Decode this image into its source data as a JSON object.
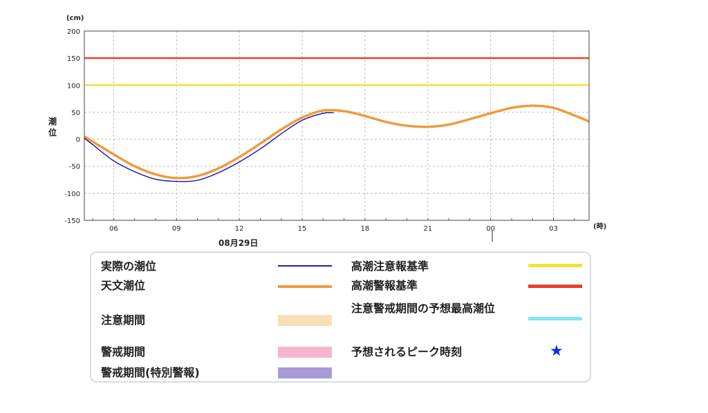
{
  "chart_data": {
    "type": "line",
    "y_unit": "(cm)",
    "x_unit": "(時)",
    "ylabel": "潮位",
    "date_label": "08月29日",
    "ylim": [
      -150,
      200
    ],
    "y_ticks": [
      200,
      150,
      100,
      50,
      0,
      -50,
      -100,
      -150
    ],
    "x_range_hours": [
      4.6,
      28.7
    ],
    "x_ticks": [
      {
        "hour": 6,
        "label": "06"
      },
      {
        "hour": 9,
        "label": "09"
      },
      {
        "hour": 12,
        "label": "12"
      },
      {
        "hour": 15,
        "label": "15"
      },
      {
        "hour": 18,
        "label": "18"
      },
      {
        "hour": 21,
        "label": "21"
      },
      {
        "hour": 24,
        "label": "00"
      },
      {
        "hour": 27,
        "label": "03"
      }
    ],
    "grid": true,
    "thresholds": [
      {
        "name": "高潮警報基準",
        "value": 150,
        "color": "#e8412a"
      },
      {
        "name": "高潮注意報基準",
        "value": 100,
        "color": "#f0e43a"
      }
    ],
    "series": [
      {
        "name": "天文潮位",
        "color": "#ee9b3a",
        "x": [
          4.6,
          6,
          7,
          8,
          9,
          10,
          11,
          12,
          13,
          14,
          15,
          16,
          17,
          18,
          19,
          20,
          21,
          22,
          23,
          24,
          25,
          26,
          27,
          28,
          28.7
        ],
        "y": [
          5,
          -28,
          -50,
          -65,
          -72,
          -68,
          -54,
          -33,
          -8,
          18,
          40,
          53,
          52,
          43,
          32,
          25,
          23,
          27,
          37,
          48,
          58,
          62,
          58,
          44,
          33
        ]
      },
      {
        "name": "実際の潮位",
        "color": "#2a18a8",
        "x": [
          4.6,
          5,
          6,
          7,
          8,
          9,
          10,
          11,
          12,
          13,
          14,
          15,
          16,
          16.5
        ],
        "y": [
          2,
          -10,
          -40,
          -60,
          -74,
          -78,
          -76,
          -62,
          -42,
          -18,
          10,
          35,
          48,
          49
        ]
      }
    ]
  },
  "legend": {
    "items": [
      {
        "label": "実際の潮位",
        "color": "#2a18a8"
      },
      {
        "label": "天文潮位",
        "color": "#ee9b3a"
      },
      {
        "label": "注意期間",
        "color": "#f8dfb6"
      },
      {
        "label": "警戒期間",
        "color": "#f4b6cc"
      },
      {
        "label": "警戒期間(特別警報)",
        "color": "#a99bd8"
      },
      {
        "label": "高潮注意報基準",
        "color": "#f0e43a"
      },
      {
        "label": "高潮警報基準",
        "color": "#e8412a"
      },
      {
        "label": "注意警戒期間の予想最高潮位",
        "color": "#7ee8f2"
      },
      {
        "label": "予想されるピーク時刻",
        "color": "#0a2ee8",
        "symbol": "★"
      }
    ]
  }
}
